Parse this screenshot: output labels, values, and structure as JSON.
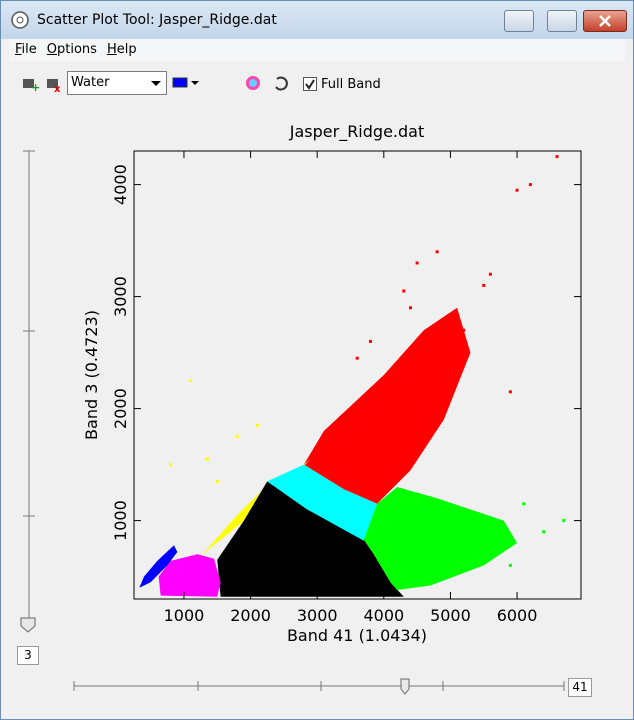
{
  "window": {
    "title": "Scatter Plot Tool: Jasper_Ridge.dat"
  },
  "menu": [
    "File",
    "Options",
    "Help"
  ],
  "toolbar": {
    "class_select": "Water",
    "full_band": "Full Band"
  },
  "sliders": {
    "vertical": "3",
    "horizontal": "41"
  },
  "chart_data": {
    "type": "scatter",
    "title": "Jasper_Ridge.dat",
    "x_label": "Band 41 (1.0434)",
    "y_label": "Band 3 (0.4723)",
    "xlim": [
      250,
      6960
    ],
    "ylim": [
      300,
      4300
    ],
    "xticks": [
      1000,
      2000,
      3000,
      4000,
      5000,
      6000
    ],
    "yticks": [
      1000,
      2000,
      3000,
      4000
    ],
    "regions": [
      {
        "color": "#ff0000",
        "x": [
          2800,
          3100,
          4000,
          4600,
          5100,
          5300,
          4900,
          4400,
          3900,
          3400
        ],
        "y": [
          1500,
          1800,
          2300,
          2700,
          2900,
          2500,
          1900,
          1450,
          1150,
          1280
        ]
      },
      {
        "color": "#ffff00",
        "x": [
          1250,
          1800,
          2300,
          2800,
          2900,
          2500,
          1700,
          1400
        ],
        "y": [
          680,
          1050,
          1350,
          1500,
          1550,
          1300,
          900,
          760
        ]
      },
      {
        "color": "#000000",
        "x": [
          1550,
          4300,
          4100,
          3850,
          3700,
          2850,
          2250,
          1900,
          1500
        ],
        "y": [
          320,
          320,
          450,
          700,
          830,
          1100,
          1350,
          1000,
          650
        ]
      },
      {
        "color": "#00ffff",
        "x": [
          2250,
          2800,
          3400,
          3900,
          3700,
          2850
        ],
        "y": [
          1350,
          1500,
          1280,
          1150,
          820,
          1100
        ]
      },
      {
        "color": "#00ff00",
        "x": [
          3900,
          4200,
          4800,
          5800,
          6000,
          5500,
          4700,
          4200,
          4100,
          3850,
          3700
        ],
        "y": [
          1150,
          1300,
          1200,
          1000,
          800,
          600,
          420,
          380,
          450,
          700,
          830
        ]
      },
      {
        "color": "#ff00ff",
        "x": [
          650,
          1500,
          1550,
          1450,
          1200,
          800,
          620
        ],
        "y": [
          330,
          320,
          450,
          660,
          700,
          640,
          500
        ]
      },
      {
        "color": "#0000ff",
        "x": [
          330,
          500,
          750,
          900,
          850,
          600,
          400
        ],
        "y": [
          400,
          450,
          600,
          720,
          780,
          640,
          500
        ]
      }
    ],
    "series": [
      {
        "color": "#ff0000",
        "x": [
          6600,
          6200,
          6000,
          5500,
          5600,
          4800,
          4500,
          4300,
          5200,
          3800,
          5900,
          4400,
          3600
        ],
        "values": [
          4250,
          4000,
          3950,
          3100,
          3200,
          3400,
          3300,
          3050,
          2700,
          2600,
          2150,
          2900,
          2450
        ]
      },
      {
        "color": "#ffff00",
        "x": [
          1800,
          1100,
          800,
          1500,
          1350,
          2100
        ],
        "values": [
          1750,
          2250,
          1500,
          1350,
          1550,
          1850
        ]
      },
      {
        "color": "#00ff00",
        "x": [
          6400,
          5900,
          6100,
          6700
        ],
        "values": [
          900,
          600,
          1150,
          1000
        ]
      }
    ]
  }
}
